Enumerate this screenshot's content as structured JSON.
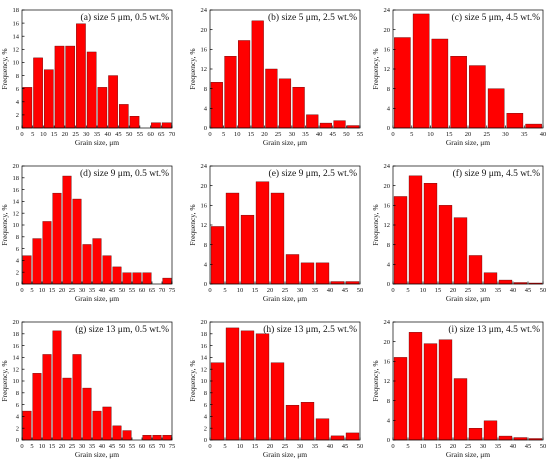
{
  "chart_data": [
    {
      "type": "bar",
      "title": "(a) size 5 μm, 0.5 wt.%",
      "xlabel": "Grain size, μm",
      "ylabel": "Frequency, %",
      "xlim": [
        0,
        70
      ],
      "ylim": [
        0,
        18
      ],
      "xticks": [
        0,
        5,
        10,
        15,
        20,
        25,
        30,
        35,
        40,
        45,
        50,
        55,
        60,
        65,
        70
      ],
      "yticks": [
        0,
        2,
        4,
        6,
        8,
        10,
        12,
        14,
        16,
        18
      ],
      "bin_width": 5,
      "x": [
        2.5,
        7.5,
        12.5,
        17.5,
        22.5,
        27.5,
        32.5,
        37.5,
        42.5,
        47.5,
        52.5,
        57.5,
        62.5,
        67.5
      ],
      "values": [
        6.2,
        10.7,
        8.9,
        12.5,
        12.5,
        15.9,
        11.6,
        6.2,
        8.0,
        3.6,
        1.8,
        0,
        0.8,
        0.8
      ],
      "grid": false,
      "color": "#ff0000"
    },
    {
      "type": "bar",
      "title": "(b) size 5 μm, 2.5 wt.%",
      "xlabel": "Grain size, μm",
      "ylabel": "Frequency, %",
      "xlim": [
        0,
        55
      ],
      "ylim": [
        0,
        24
      ],
      "xticks": [
        0,
        5,
        10,
        15,
        20,
        25,
        30,
        35,
        40,
        45,
        50,
        55
      ],
      "yticks": [
        0,
        4,
        8,
        12,
        16,
        20,
        24
      ],
      "bin_width": 5,
      "x": [
        2.5,
        7.5,
        12.5,
        17.5,
        22.5,
        27.5,
        32.5,
        37.5,
        42.5,
        47.5,
        52.5
      ],
      "values": [
        9.3,
        14.6,
        17.8,
        21.8,
        12.0,
        10.0,
        8.3,
        2.7,
        1.0,
        1.5,
        0.5
      ],
      "grid": false,
      "color": "#ff0000"
    },
    {
      "type": "bar",
      "title": "(c) size 5 μm, 4.5 wt.%",
      "xlabel": "Grain size, μm",
      "ylabel": "Frequency, %",
      "xlim": [
        0,
        40
      ],
      "ylim": [
        0,
        24
      ],
      "xticks": [
        0,
        5,
        10,
        15,
        20,
        25,
        30,
        35,
        40
      ],
      "yticks": [
        0,
        4,
        8,
        12,
        16,
        20,
        24
      ],
      "bin_width": 5,
      "x": [
        2.5,
        7.5,
        12.5,
        17.5,
        22.5,
        27.5,
        32.5,
        37.5
      ],
      "values": [
        18.4,
        23.2,
        18.1,
        14.6,
        12.7,
        8.0,
        3.0,
        0.8
      ],
      "grid": false,
      "color": "#ff0000"
    },
    {
      "type": "bar",
      "title": "(d) size 9 μm, 0.5 wt.%",
      "xlabel": "Grain size, μm",
      "ylabel": "Frequency, %",
      "xlim": [
        0,
        75
      ],
      "ylim": [
        0,
        20
      ],
      "xticks": [
        0,
        5,
        10,
        15,
        20,
        25,
        30,
        35,
        40,
        45,
        50,
        55,
        60,
        65,
        70,
        75
      ],
      "yticks": [
        0,
        2,
        4,
        6,
        8,
        10,
        12,
        14,
        16,
        18,
        20
      ],
      "bin_width": 5,
      "x": [
        2.5,
        7.5,
        12.5,
        17.5,
        22.5,
        27.5,
        32.5,
        37.5,
        42.5,
        47.5,
        52.5,
        57.5,
        62.5,
        67.5,
        72.5
      ],
      "values": [
        4.8,
        7.7,
        10.6,
        15.4,
        18.3,
        14.4,
        6.7,
        7.7,
        4.8,
        2.9,
        1.9,
        1.9,
        1.9,
        0,
        1.0
      ],
      "grid": false,
      "color": "#ff0000"
    },
    {
      "type": "bar",
      "title": "(e) size 9 μm, 2.5 wt.%",
      "xlabel": "Grain size, μm",
      "ylabel": "Frequency, %",
      "xlim": [
        0,
        50
      ],
      "ylim": [
        0,
        24
      ],
      "xticks": [
        0,
        5,
        10,
        15,
        20,
        25,
        30,
        35,
        40,
        45,
        50
      ],
      "yticks": [
        0,
        4,
        8,
        12,
        16,
        20,
        24
      ],
      "bin_width": 5,
      "x": [
        2.5,
        7.5,
        12.5,
        17.5,
        22.5,
        27.5,
        32.5,
        37.5,
        42.5,
        47.5
      ],
      "values": [
        11.7,
        18.5,
        14.0,
        20.8,
        18.5,
        6.0,
        4.3,
        4.3,
        0.5,
        0.5
      ],
      "grid": false,
      "color": "#ff0000"
    },
    {
      "type": "bar",
      "title": "(f) size 9 μm, 4.5 wt.%",
      "xlabel": "Grain size, μm",
      "ylabel": "Frequency, %",
      "xlim": [
        0,
        50
      ],
      "ylim": [
        0,
        24
      ],
      "xticks": [
        0,
        5,
        10,
        15,
        20,
        25,
        30,
        35,
        40,
        45,
        50
      ],
      "yticks": [
        0,
        4,
        8,
        12,
        16,
        20,
        24
      ],
      "bin_width": 5,
      "x": [
        2.5,
        7.5,
        12.5,
        17.5,
        22.5,
        27.5,
        32.5,
        37.5,
        42.5,
        47.5
      ],
      "values": [
        17.8,
        22.0,
        20.5,
        16.0,
        13.5,
        5.8,
        2.3,
        0.8,
        0.3,
        0.2
      ],
      "grid": false,
      "color": "#ff0000"
    },
    {
      "type": "bar",
      "title": "(g) size 13 μm, 0.5 wt.%",
      "xlabel": "Grain size, μm",
      "ylabel": "Frequency, %",
      "xlim": [
        0,
        75
      ],
      "ylim": [
        0,
        20
      ],
      "xticks": [
        0,
        5,
        10,
        15,
        20,
        25,
        30,
        35,
        40,
        45,
        50,
        55,
        60,
        65,
        70,
        75
      ],
      "yticks": [
        0,
        2,
        4,
        6,
        8,
        10,
        12,
        14,
        16,
        18,
        20
      ],
      "bin_width": 5,
      "x": [
        2.5,
        7.5,
        12.5,
        17.5,
        22.5,
        27.5,
        32.5,
        37.5,
        42.5,
        47.5,
        52.5,
        57.5,
        62.5,
        67.5,
        72.5
      ],
      "values": [
        4.9,
        11.3,
        14.5,
        18.5,
        10.5,
        14.5,
        8.8,
        4.9,
        5.6,
        2.4,
        1.6,
        0,
        0.8,
        0.8,
        0.8
      ],
      "grid": false,
      "color": "#ff0000"
    },
    {
      "type": "bar",
      "title": "(h) size 13 μm, 2.5 wt.%",
      "xlabel": "Grain size, μm",
      "ylabel": "Frequency, %",
      "xlim": [
        0,
        50
      ],
      "ylim": [
        0,
        20
      ],
      "xticks": [
        0,
        5,
        10,
        15,
        20,
        25,
        30,
        35,
        40,
        45,
        50
      ],
      "yticks": [
        0,
        2,
        4,
        6,
        8,
        10,
        12,
        14,
        16,
        18,
        20
      ],
      "bin_width": 5,
      "x": [
        2.5,
        7.5,
        12.5,
        17.5,
        22.5,
        27.5,
        32.5,
        37.5,
        42.5,
        47.5
      ],
      "values": [
        13.1,
        19.0,
        18.5,
        18.0,
        13.1,
        5.9,
        6.4,
        3.6,
        0.7,
        1.2
      ],
      "grid": false,
      "color": "#ff0000"
    },
    {
      "type": "bar",
      "title": "(i) size 13 μm, 4.5 wt.%",
      "xlabel": "Grain size, μm",
      "ylabel": "Frequency, %",
      "xlim": [
        0,
        50
      ],
      "ylim": [
        0,
        24
      ],
      "xticks": [
        0,
        5,
        10,
        15,
        20,
        25,
        30,
        35,
        40,
        45,
        50
      ],
      "yticks": [
        0,
        4,
        8,
        12,
        16,
        20,
        24
      ],
      "bin_width": 5,
      "x": [
        2.5,
        7.5,
        12.5,
        17.5,
        22.5,
        27.5,
        32.5,
        37.5,
        42.5,
        47.5
      ],
      "values": [
        16.8,
        21.9,
        19.6,
        20.4,
        12.5,
        2.4,
        3.9,
        0.8,
        0.5,
        0.3
      ],
      "grid": false,
      "color": "#ff0000"
    }
  ]
}
